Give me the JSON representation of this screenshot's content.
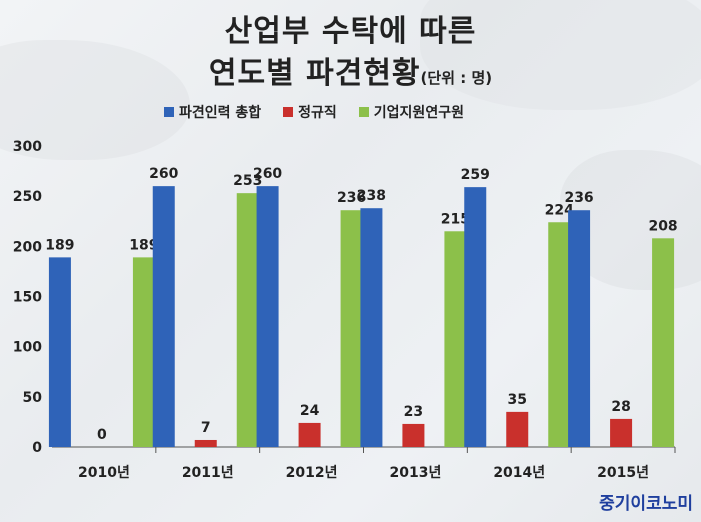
{
  "title": {
    "line1": "산업부 수탁에 따른",
    "line2": "연도별 파견현황",
    "unit": "(단위 : 명)"
  },
  "brand": "중기이코노미",
  "colors": {
    "series_1": "#2f63b8",
    "series_2": "#c9302c",
    "series_3": "#8cc04a"
  },
  "chart_data": {
    "type": "bar",
    "categories": [
      "2010년",
      "2011년",
      "2012년",
      "2013년",
      "2014년",
      "2015년"
    ],
    "series": [
      {
        "name": "파견인력 총합",
        "values": [
          189,
          260,
          260,
          238,
          259,
          236
        ]
      },
      {
        "name": "정규직",
        "values": [
          0,
          7,
          24,
          23,
          35,
          28
        ]
      },
      {
        "name": "기업지원연구원",
        "values": [
          189,
          253,
          236,
          215,
          224,
          208
        ]
      }
    ],
    "ylim": [
      0,
      300
    ],
    "yticks": [
      "0",
      "50",
      "100",
      "150",
      "200",
      "250",
      "300"
    ],
    "grid": false,
    "legend": "top"
  }
}
